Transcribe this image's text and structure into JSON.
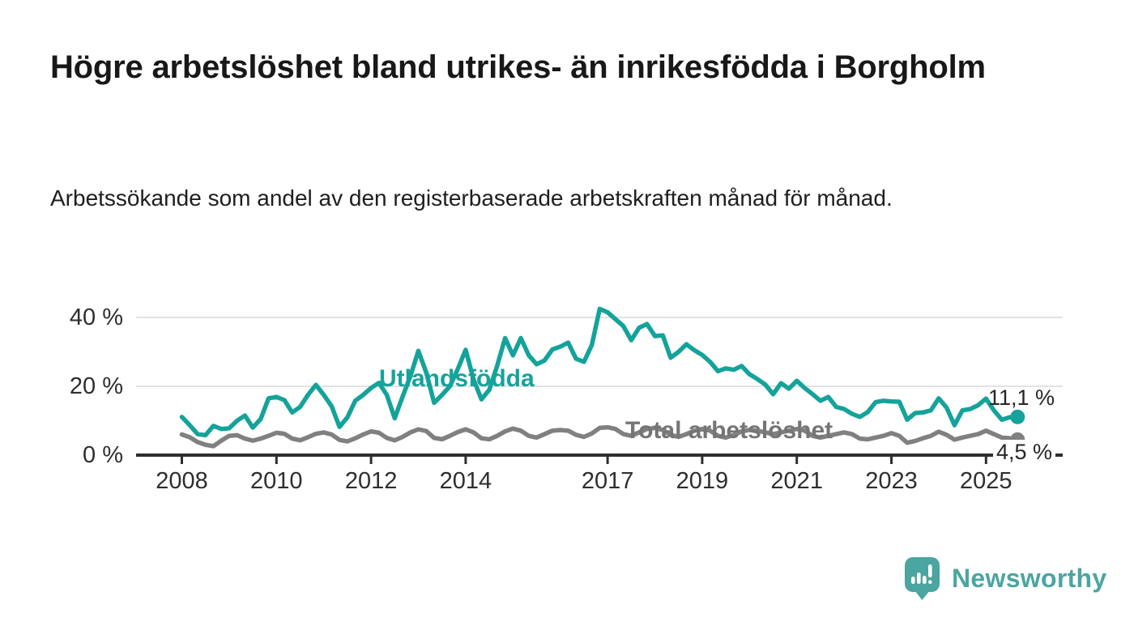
{
  "header": {
    "title": "Högre arbetslöshet bland utrikes- än inrikesfödda i Borgholm",
    "subtitle": "Arbetssökande som andel av den registerbaserade arbetskraften månad för månad."
  },
  "chart_data": {
    "type": "line",
    "description": "Two monthly time series 2008–2025, values in percent; points sampled every 2 months",
    "x_start": 2008.0,
    "x_step_years": 0.1667,
    "x_end": 2025.67,
    "ylim": [
      0,
      45
    ],
    "y_tick_labels": [
      "40 %",
      "20 %",
      "0 %"
    ],
    "y_tick_values": [
      40,
      20,
      0
    ],
    "y_gridline_values": [
      20,
      40
    ],
    "x_tick_years": [
      2008,
      2010,
      2012,
      2014,
      2017,
      2019,
      2021,
      2023,
      2025
    ],
    "x_tick_labels": [
      "2008",
      "2010",
      "2012",
      "2014",
      "2017",
      "2019",
      "2021",
      "2023",
      "2025"
    ],
    "grid": "horizontal gridlines at 20% and 40% only",
    "legend": "inline labels placed on the lines",
    "colors": {
      "gridline": "#d9d9d9",
      "axis": "#2e2e2e"
    },
    "series": [
      {
        "name": "Utlandsfödda",
        "color": "#14a39a",
        "end_label": "11,1 %",
        "end_value": 11.1,
        "values": [
          11.1,
          8.7,
          6.1,
          5.8,
          8.5,
          7.6,
          7.8,
          10.0,
          11.5,
          8.0,
          10.5,
          16.5,
          16.9,
          16.0,
          12.4,
          14.0,
          17.5,
          20.4,
          17.5,
          14.2,
          8.2,
          11.0,
          15.8,
          17.5,
          19.5,
          21.0,
          17.5,
          10.7,
          17.0,
          23.0,
          30.3,
          24.0,
          15.2,
          17.5,
          20.0,
          25.0,
          30.6,
          22.0,
          16.2,
          19.0,
          26.0,
          34.0,
          29.0,
          34.0,
          29.0,
          26.4,
          27.5,
          30.7,
          31.5,
          32.7,
          28.0,
          27.1,
          32.0,
          42.5,
          41.5,
          39.5,
          37.5,
          33.4,
          37.0,
          38.1,
          34.6,
          34.8,
          28.3,
          30.0,
          32.2,
          30.5,
          29.1,
          27.1,
          24.4,
          25.2,
          24.8,
          25.9,
          23.5,
          22.1,
          20.5,
          17.7,
          20.9,
          19.3,
          21.6,
          19.5,
          17.7,
          15.8,
          16.9,
          14.0,
          13.4,
          12.0,
          11.1,
          12.5,
          15.4,
          15.8,
          15.6,
          15.5,
          10.3,
          12.2,
          12.4,
          13.0,
          16.5,
          13.8,
          8.7,
          13.0,
          13.4,
          14.5,
          16.4,
          13.0,
          10.3,
          11.0,
          11.1
        ]
      },
      {
        "name": "Total arbetslöshet",
        "color": "#808080",
        "end_label": "4,5 %",
        "end_value": 4.5,
        "values": [
          6.0,
          5.2,
          3.8,
          3.0,
          2.6,
          4.2,
          5.6,
          5.8,
          4.8,
          4.2,
          4.8,
          5.6,
          6.5,
          6.2,
          4.8,
          4.3,
          5.2,
          6.2,
          6.6,
          6.0,
          4.4,
          4.0,
          4.9,
          6.0,
          6.9,
          6.5,
          5.0,
          4.3,
          5.3,
          6.6,
          7.5,
          7.0,
          5.0,
          4.6,
          5.6,
          6.7,
          7.5,
          6.6,
          4.9,
          4.6,
          5.6,
          6.9,
          7.7,
          7.1,
          5.6,
          5.1,
          6.1,
          7.1,
          7.3,
          7.1,
          5.9,
          5.3,
          6.3,
          7.9,
          8.1,
          7.6,
          6.1,
          5.6,
          6.6,
          7.6,
          7.9,
          7.3,
          5.9,
          5.3,
          6.1,
          7.1,
          7.6,
          7.1,
          5.6,
          5.1,
          5.9,
          6.9,
          7.3,
          7.1,
          6.6,
          6.1,
          6.6,
          7.1,
          7.6,
          7.1,
          5.6,
          5.1,
          5.6,
          6.1,
          6.6,
          6.1,
          4.8,
          4.6,
          5.1,
          5.6,
          6.4,
          5.6,
          3.6,
          4.1,
          4.9,
          5.6,
          6.8,
          5.9,
          4.5,
          5.1,
          5.6,
          6.1,
          7.1,
          6.1,
          5.1,
          4.9,
          4.5
        ]
      }
    ]
  },
  "footer": {
    "brand": "Newsworthy"
  }
}
